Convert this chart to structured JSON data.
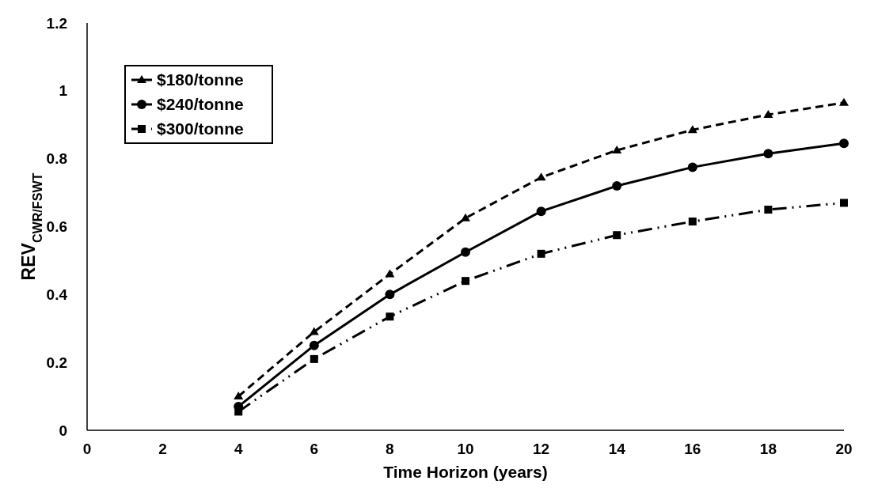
{
  "chart_data": {
    "type": "line",
    "xlabel": "Time Horizon (years)",
    "ylabel": "REV$_{CWR/FSWT}$",
    "x": [
      4,
      6,
      8,
      10,
      12,
      14,
      16,
      18,
      20
    ],
    "series": [
      {
        "name": "$180/tonne",
        "color": "#000000",
        "marker": "triangle",
        "line_style": "dashed",
        "values": [
          0.1,
          0.29,
          0.46,
          0.625,
          0.745,
          0.825,
          0.885,
          0.93,
          0.965
        ]
      },
      {
        "name": "$240/tonne",
        "color": "#000000",
        "marker": "circle",
        "line_style": "solid",
        "values": [
          0.07,
          0.25,
          0.4,
          0.525,
          0.645,
          0.72,
          0.775,
          0.815,
          0.845
        ]
      },
      {
        "name": "$300/tonne",
        "color": "#000000",
        "marker": "square",
        "line_style": "dashdotdot",
        "values": [
          0.055,
          0.21,
          0.335,
          0.44,
          0.52,
          0.575,
          0.615,
          0.65,
          0.67
        ]
      }
    ],
    "xlim": [
      0,
      20
    ],
    "xticks": [
      0,
      2,
      4,
      6,
      8,
      10,
      12,
      14,
      16,
      18,
      20
    ],
    "ylim": [
      0,
      1.2
    ],
    "yticks": [
      0,
      0.2,
      0.4,
      0.6,
      0.8,
      1,
      1.2
    ],
    "legend": "top left"
  }
}
